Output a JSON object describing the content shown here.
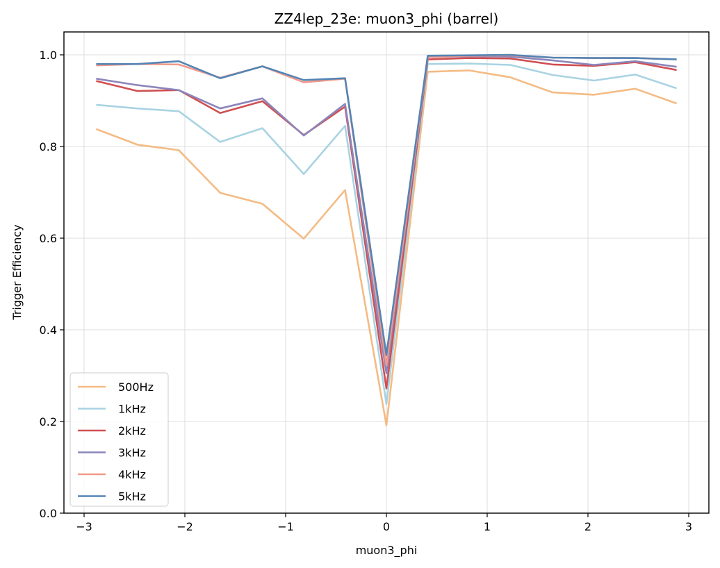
{
  "chart_data": {
    "type": "line",
    "title": "ZZ4lep_23e: muon3_phi (barrel)",
    "xlabel": "muon3_phi",
    "ylabel": "Trigger Efficiency",
    "xlim": [
      -3.2,
      3.2
    ],
    "ylim": [
      0.0,
      1.05
    ],
    "xticks": [
      -3,
      -2,
      -1,
      0,
      1,
      2,
      3
    ],
    "xtick_labels": [
      "−3",
      "−2",
      "−1",
      "0",
      "1",
      "2",
      "3"
    ],
    "yticks": [
      0.0,
      0.2,
      0.4,
      0.6,
      0.8,
      1.0
    ],
    "ytick_labels": [
      "0.0",
      "0.2",
      "0.4",
      "0.6",
      "0.8",
      "1.0"
    ],
    "grid": true,
    "legend_position": "lower-left",
    "x": [
      -2.88,
      -2.47,
      -2.06,
      -1.65,
      -1.23,
      -0.82,
      -0.41,
      0.0,
      0.41,
      0.82,
      1.23,
      1.65,
      2.06,
      2.47,
      2.88
    ],
    "series": [
      {
        "name": "500Hz",
        "color": "#f4bb84",
        "values": [
          0.838,
          0.804,
          0.792,
          0.699,
          0.675,
          0.599,
          0.705,
          0.192,
          0.963,
          0.966,
          0.951,
          0.918,
          0.913,
          0.926,
          0.894
        ]
      },
      {
        "name": "1kHz",
        "color": "#a9d3e2",
        "values": [
          0.891,
          0.883,
          0.877,
          0.81,
          0.84,
          0.74,
          0.845,
          0.238,
          0.98,
          0.981,
          0.978,
          0.956,
          0.944,
          0.957,
          0.927
        ]
      },
      {
        "name": "2kHz",
        "color": "#d04f52",
        "values": [
          0.943,
          0.921,
          0.923,
          0.873,
          0.899,
          0.825,
          0.887,
          0.272,
          0.99,
          0.993,
          0.992,
          0.979,
          0.976,
          0.984,
          0.967
        ]
      },
      {
        "name": "3kHz",
        "color": "#8b86bb",
        "values": [
          0.948,
          0.934,
          0.923,
          0.883,
          0.905,
          0.824,
          0.893,
          0.305,
          0.995,
          0.997,
          0.996,
          0.988,
          0.978,
          0.986,
          0.974
        ]
      },
      {
        "name": "4kHz",
        "color": "#f2998a",
        "values": [
          0.977,
          0.98,
          0.979,
          0.95,
          0.975,
          0.94,
          0.948,
          0.322,
          0.995,
          0.998,
          0.999,
          0.994,
          0.993,
          0.993,
          0.99
        ]
      },
      {
        "name": "5kHz",
        "color": "#5484b4",
        "values": [
          0.98,
          0.98,
          0.986,
          0.949,
          0.975,
          0.945,
          0.949,
          0.345,
          0.998,
          0.999,
          1.0,
          0.994,
          0.993,
          0.993,
          0.99
        ]
      }
    ]
  }
}
